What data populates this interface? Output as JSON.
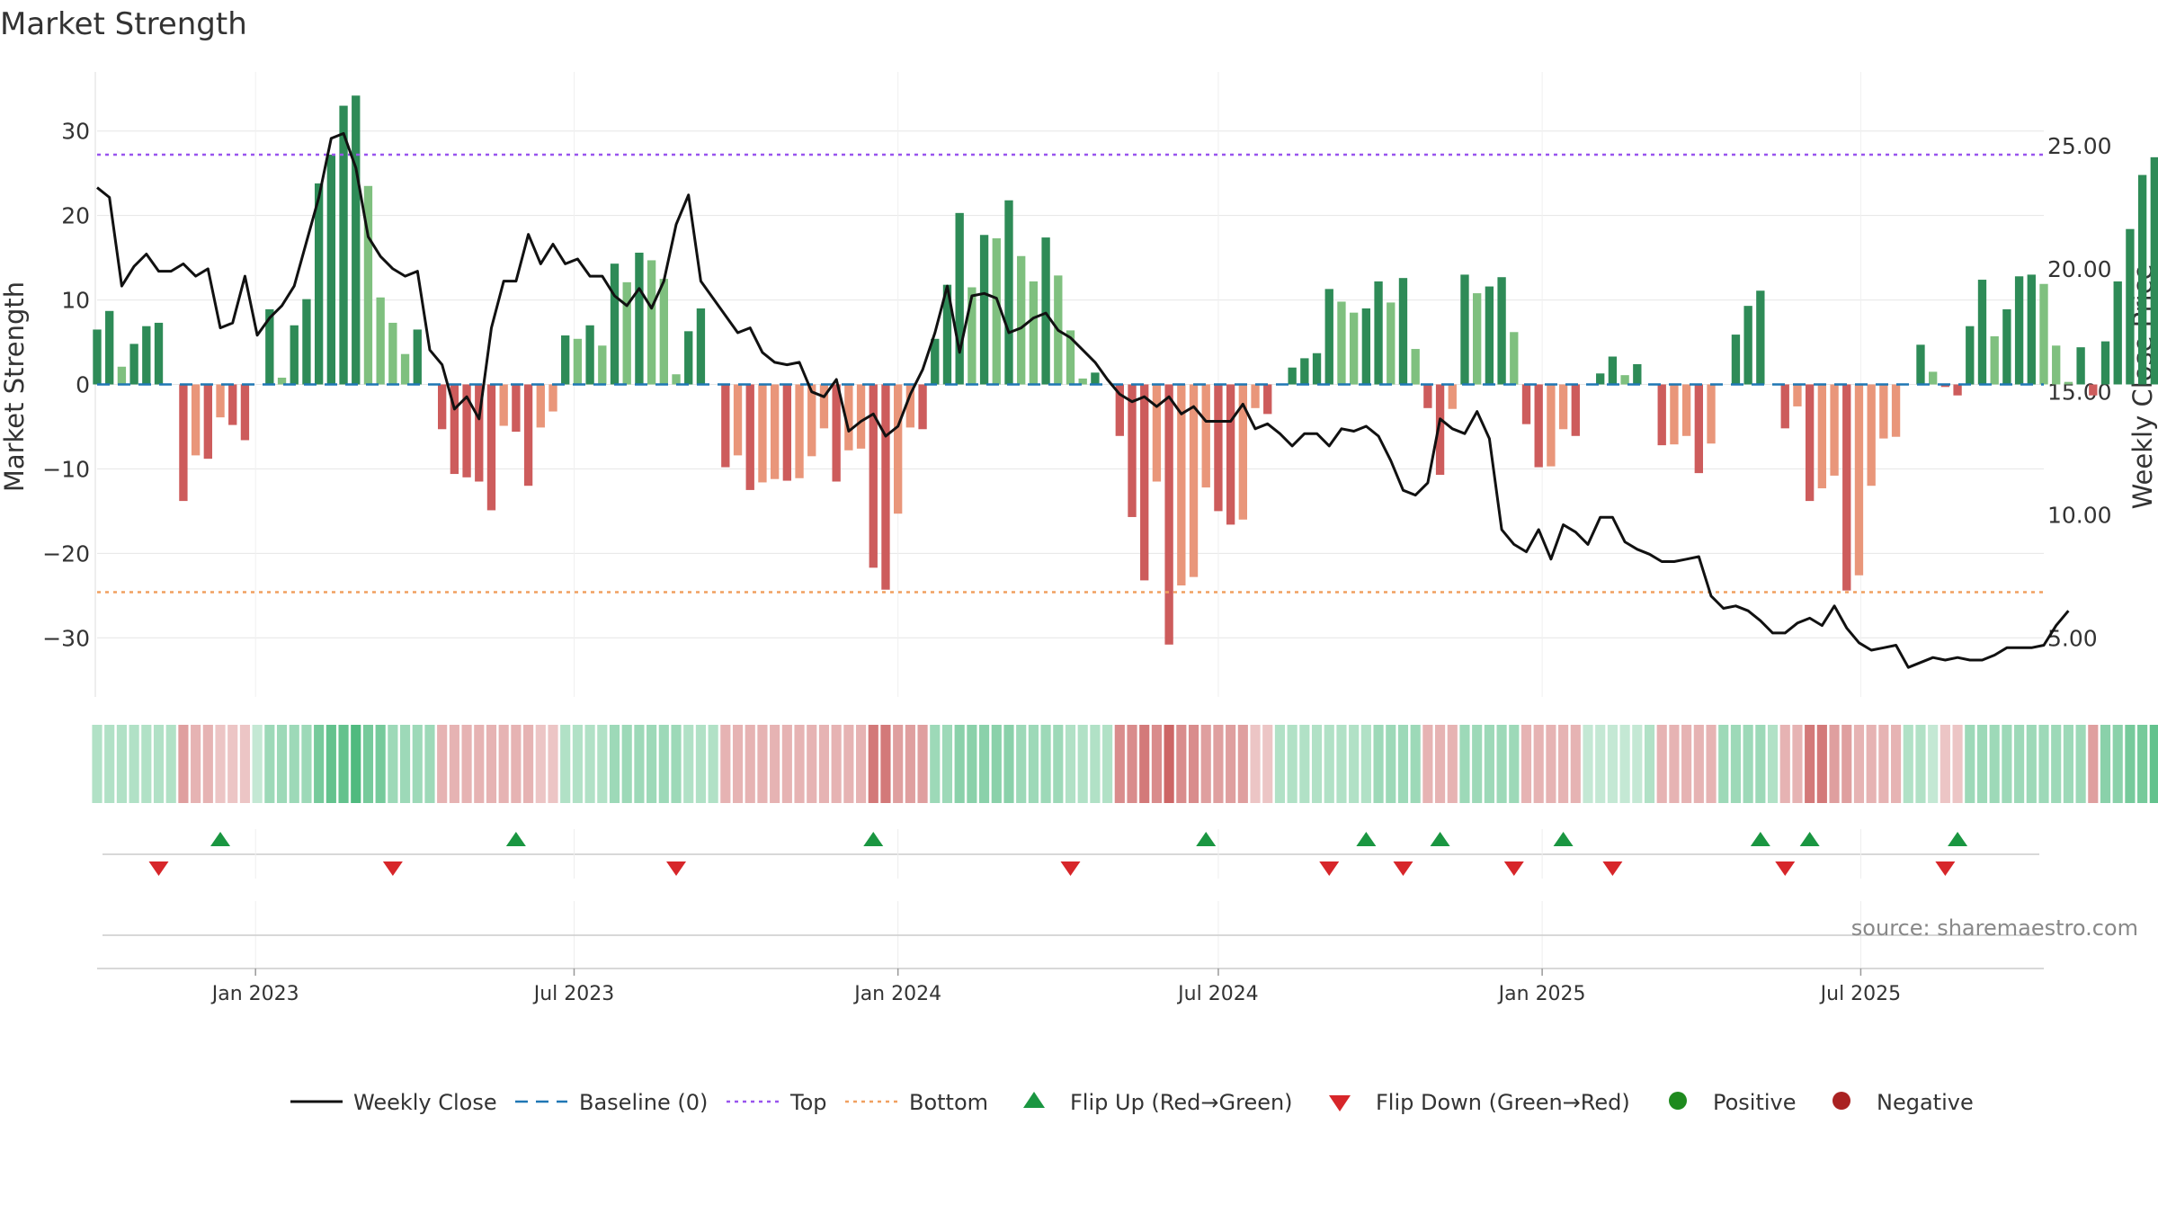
{
  "chart_data": {
    "type": "bar",
    "title": "Market Strength",
    "ylabel_left": "Market Strength",
    "ylabel_right": "Weekly Close Price",
    "source": "source: sharemaestro.com",
    "ylim_left": [
      -37,
      37
    ],
    "ylim_right": [
      2.6,
      28.0
    ],
    "yticks_left": [
      -30,
      -20,
      -10,
      0,
      10,
      20,
      30
    ],
    "ytick_labels_left": [
      "−30",
      "−20",
      "−10",
      "0",
      "10",
      "20",
      "30"
    ],
    "yticks_right": [
      5,
      10,
      15,
      20,
      25
    ],
    "ytick_labels_right": [
      "5.00",
      "10.00",
      "15.00",
      "20.00",
      "25.00"
    ],
    "x_start": "2022-10-03",
    "x_end": "2025-10-13",
    "x_tick_dates": [
      "2023-01-01",
      "2023-07-01",
      "2024-01-01",
      "2024-07-01",
      "2025-01-01",
      "2025-07-01"
    ],
    "x_tick_labels": [
      "Jan 2023",
      "Jul 2023",
      "Jan 2024",
      "Jul 2024",
      "Jan 2025",
      "Jul 2025"
    ],
    "top_level": 27.2,
    "bottom_level": -24.6,
    "strength": [
      6.5,
      8.7,
      2.1,
      4.8,
      6.9,
      7.3,
      0,
      -13.8,
      -8.4,
      -8.8,
      -3.9,
      -4.8,
      -6.6,
      0,
      8.9,
      0.8,
      7,
      10.1,
      23.8,
      27.2,
      33,
      34.2,
      23.5,
      10.3,
      7.3,
      3.6,
      6.5,
      0,
      -5.3,
      -10.6,
      -11,
      -11.5,
      -14.9,
      -4.9,
      -5.6,
      -12,
      -5.1,
      -3.2,
      5.8,
      5.4,
      7,
      4.6,
      14.3,
      12.1,
      15.6,
      14.7,
      12.5,
      1.2,
      6.3,
      9,
      0,
      -9.8,
      -8.4,
      -12.5,
      -11.6,
      -11.2,
      -11.4,
      -11.1,
      -8.5,
      -5.2,
      -11.5,
      -7.8,
      -7.6,
      -21.7,
      -24.3,
      -15.3,
      -5.1,
      -5.3,
      5.4,
      11.8,
      20.3,
      11.5,
      17.7,
      17.3,
      21.8,
      15.2,
      12.2,
      17.4,
      12.9,
      6.4,
      0.7,
      1.4,
      0,
      -6.1,
      -15.7,
      -23.2,
      -11.5,
      -30.8,
      -23.8,
      -22.8,
      -12.2,
      -15,
      -16.6,
      -16,
      -2.8,
      -3.5,
      0,
      2,
      3.1,
      3.7,
      11.3,
      9.8,
      8.5,
      9,
      12.2,
      9.7,
      12.6,
      4.2,
      -2.8,
      -10.7,
      -2.9,
      13,
      10.8,
      11.6,
      12.7,
      6.2,
      -4.7,
      -9.8,
      -9.7,
      -5.3,
      -6.1,
      0,
      1.3,
      3.3,
      1.1,
      2.4,
      0,
      -7.2,
      -7.1,
      -6.1,
      -10.5,
      -7,
      0,
      5.9,
      9.3,
      11.1,
      0,
      -5.2,
      -2.6,
      -13.8,
      -12.3,
      -10.8,
      -24.4,
      -22.6,
      -12,
      -6.4,
      -6.2,
      0,
      4.7,
      1.5,
      -0.3,
      -1.3,
      6.9,
      12.4,
      5.7,
      8.9,
      12.8,
      13,
      11.9,
      4.6,
      0.3,
      4.4,
      -1.3,
      5.1,
      12.2,
      18.4,
      24.8,
      26.9
    ],
    "price": [
      23.3,
      22.9,
      19.3,
      20.1,
      20.6,
      19.9,
      19.9,
      20.2,
      19.7,
      20,
      17.6,
      17.8,
      19.7,
      17.3,
      18,
      18.5,
      19.3,
      21.1,
      22.9,
      25.3,
      25.5,
      24.1,
      21.3,
      20.5,
      20,
      19.7,
      19.9,
      16.7,
      16.1,
      14.3,
      14.8,
      13.9,
      17.6,
      19.5,
      19.5,
      21.4,
      20.2,
      21,
      20.2,
      20.4,
      19.7,
      19.7,
      18.9,
      18.5,
      19.2,
      18.4,
      19.5,
      21.8,
      23,
      19.5,
      18.8,
      18.1,
      17.4,
      17.6,
      16.6,
      16.2,
      16.1,
      16.2,
      15,
      14.8,
      15.5,
      13.4,
      13.8,
      14.1,
      13.2,
      13.6,
      14.9,
      15.9,
      17.4,
      19.3,
      16.6,
      18.9,
      19,
      18.8,
      17.4,
      17.6,
      18,
      18.2,
      17.5,
      17.2,
      16.7,
      16.2,
      15.5,
      14.9,
      14.6,
      14.8,
      14.4,
      14.8,
      14.1,
      14.4,
      13.8,
      13.8,
      13.8,
      14.5,
      13.5,
      13.7,
      13.3,
      12.8,
      13.3,
      13.3,
      12.8,
      13.5,
      13.4,
      13.6,
      13.2,
      12.2,
      11,
      10.8,
      11.3,
      13.9,
      13.5,
      13.3,
      14.2,
      13.1,
      9.4,
      8.8,
      8.5,
      9.4,
      8.2,
      9.6,
      9.3,
      8.8,
      9.9,
      9.9,
      8.9,
      8.6,
      8.4,
      8.1,
      8.1,
      8.2,
      8.3,
      6.7,
      6.2,
      6.3,
      6.1,
      5.7,
      5.2,
      5.2,
      5.6,
      5.8,
      5.5,
      6.3,
      5.4,
      4.8,
      4.5,
      4.6,
      4.7,
      3.8,
      4,
      4.2,
      4.1,
      4.2,
      4.1,
      4.1,
      4.3,
      4.6,
      4.6,
      4.6,
      4.7,
      5.5,
      6.1
    ],
    "status_opacity": [
      0.4,
      0.4,
      0.4,
      0.4,
      0.4,
      0.4,
      0.4,
      0.5,
      0.4,
      0.4,
      0.3,
      0.3,
      0.3,
      0.3,
      0.5,
      0.5,
      0.5,
      0.5,
      0.7,
      0.8,
      0.8,
      0.9,
      0.7,
      0.7,
      0.5,
      0.5,
      0.5,
      0.5,
      0.4,
      0.4,
      0.4,
      0.4,
      0.4,
      0.4,
      0.4,
      0.4,
      0.3,
      0.3,
      0.4,
      0.4,
      0.4,
      0.4,
      0.5,
      0.5,
      0.5,
      0.5,
      0.5,
      0.5,
      0.4,
      0.4,
      0.4,
      0.4,
      0.4,
      0.4,
      0.4,
      0.4,
      0.4,
      0.4,
      0.4,
      0.4,
      0.4,
      0.4,
      0.4,
      0.7,
      0.7,
      0.5,
      0.5,
      0.5,
      0.5,
      0.5,
      0.6,
      0.6,
      0.6,
      0.6,
      0.6,
      0.5,
      0.5,
      0.5,
      0.5,
      0.4,
      0.4,
      0.4,
      0.4,
      0.6,
      0.6,
      0.7,
      0.6,
      0.8,
      0.6,
      0.6,
      0.5,
      0.5,
      0.5,
      0.5,
      0.3,
      0.3,
      0.4,
      0.4,
      0.4,
      0.4,
      0.4,
      0.4,
      0.4,
      0.4,
      0.5,
      0.5,
      0.5,
      0.5,
      0.4,
      0.4,
      0.4,
      0.5,
      0.5,
      0.5,
      0.5,
      0.5,
      0.4,
      0.4,
      0.4,
      0.4,
      0.4,
      0.3,
      0.3,
      0.3,
      0.3,
      0.3,
      0.4,
      0.4,
      0.4,
      0.4,
      0.4,
      0.4,
      0.5,
      0.5,
      0.5,
      0.5,
      0.4,
      0.4,
      0.4,
      0.7,
      0.7,
      0.5,
      0.5,
      0.4,
      0.4,
      0.4,
      0.4,
      0.4,
      0.4,
      0.3,
      0.3,
      0.3,
      0.5,
      0.5,
      0.5,
      0.5,
      0.5,
      0.5,
      0.5,
      0.5,
      0.5,
      0.5,
      0.5,
      0.6,
      0.6,
      0.7,
      0.7,
      0.8
    ],
    "flip_up_dates": [
      "2022-12-12",
      "2023-05-29",
      "2023-12-18",
      "2024-06-24",
      "2024-09-23",
      "2024-11-04",
      "2025-01-13",
      "2025-05-05",
      "2025-06-02",
      "2025-08-25"
    ],
    "flip_down_dates": [
      "2022-11-07",
      "2023-03-20",
      "2023-08-28",
      "2024-04-08",
      "2024-09-02",
      "2024-10-14",
      "2024-12-16",
      "2025-02-10",
      "2025-05-19",
      "2025-08-18"
    ],
    "legend": [
      {
        "key": "close",
        "label": "Weekly Close"
      },
      {
        "key": "baseline",
        "label": "Baseline (0)"
      },
      {
        "key": "top",
        "label": "Top"
      },
      {
        "key": "bottom",
        "label": "Bottom"
      },
      {
        "key": "flip-up",
        "label": "Flip Up (Red→Green)"
      },
      {
        "key": "flip-down",
        "label": "Flip Down (Green→Red)"
      },
      {
        "key": "positive",
        "label": "Positive"
      },
      {
        "key": "negative",
        "label": "Negative"
      }
    ],
    "legend_placement": "bottom-center",
    "colors": {
      "strong_green": "#2e8b57",
      "light_green": "#7fc07f",
      "strong_red": "#cd5c5c",
      "light_red": "#e9967a",
      "status_green": "#3cb371",
      "status_red": "#c04040",
      "close_line": "#111111",
      "baseline": "#1f77b4",
      "top_line": "#9955ee",
      "bottom_line": "#f0a060",
      "flip_up": "#1a9641",
      "flip_down": "#d7262a",
      "positive_dot": "#1e8a1e",
      "negative_dot": "#aa2222",
      "grid": "#e6e6e6",
      "source_text": "#888888"
    }
  }
}
